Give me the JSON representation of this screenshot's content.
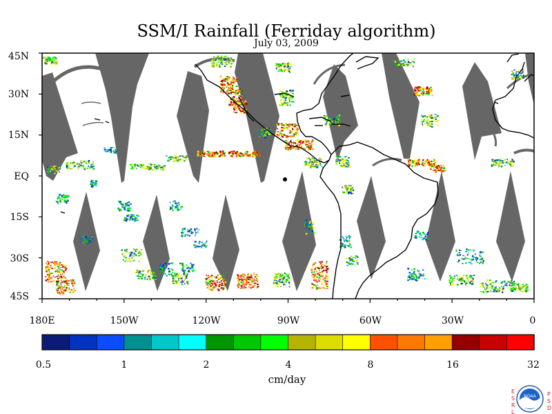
{
  "map": {
    "title": "SSM/I Rainfall (Ferriday algorithm)",
    "date": "July 03, 2009",
    "lat_labels": [
      "45N",
      "30N",
      "15N",
      "EQ",
      "15S",
      "30S",
      "45S"
    ],
    "lat_values": [
      45,
      30,
      15,
      0,
      -15,
      -30,
      -45
    ],
    "lon_labels": [
      "180E",
      "150W",
      "120W",
      "90W",
      "60W",
      "30W",
      "0"
    ],
    "lon_values": [
      -180,
      -150,
      -120,
      -90,
      -60,
      -30,
      0
    ],
    "lon_range": [
      -180,
      0
    ],
    "lat_range": [
      -45,
      45
    ],
    "no_data_color": "#666666"
  },
  "colorbar": {
    "colors": [
      "#0c1a78",
      "#0033c0",
      "#0a4cff",
      "#009090",
      "#00c8c8",
      "#00ffff",
      "#009600",
      "#00c800",
      "#00ff00",
      "#b4b400",
      "#dcdc00",
      "#ffff00",
      "#ff5000",
      "#ff7800",
      "#ffa000",
      "#960000",
      "#c80000",
      "#ff0000"
    ],
    "tick_labels": [
      "0.5",
      "1",
      "2",
      "4",
      "8",
      "16",
      "32"
    ],
    "units": "cm/day"
  },
  "logo": {
    "left_letters": "ESRL",
    "right_letters": "PSD",
    "center_text": "NOAA"
  }
}
